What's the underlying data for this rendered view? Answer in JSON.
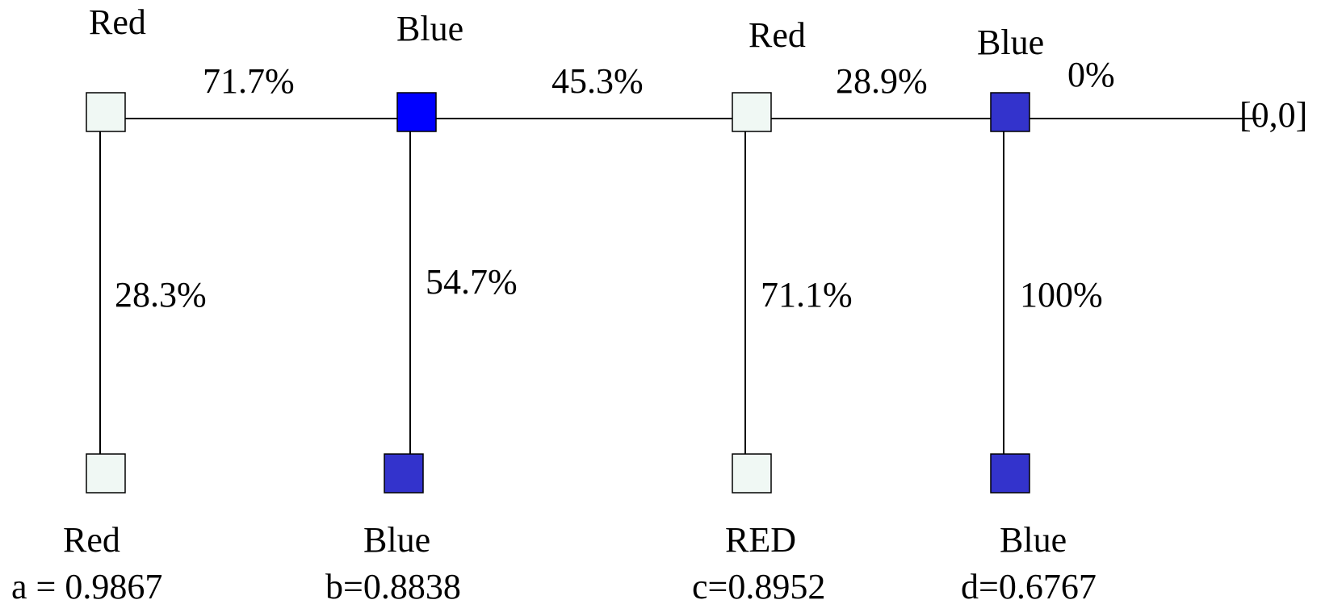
{
  "colors": {
    "red_node": "#f0f8f4",
    "blue_node_bright": "#0000ff",
    "blue_node_dark": "#3333cc"
  },
  "top_nodes": [
    {
      "label": "Red",
      "color": "red"
    },
    {
      "label": "Blue",
      "color": "blue_bright"
    },
    {
      "label": "Red",
      "color": "red"
    },
    {
      "label": "Blue",
      "color": "blue_dark"
    }
  ],
  "horizontal_edges": [
    "71.7%",
    "45.3%",
    "28.9%",
    "0%"
  ],
  "vertical_edges": [
    "28.3%",
    "54.7%",
    "71.1%",
    "100%"
  ],
  "terminal_label": "[0,0]",
  "leaves": [
    {
      "label": "Red",
      "value": "a = 0.9867",
      "color": "red"
    },
    {
      "label": "Blue",
      "value": "b=0.8838",
      "color": "blue_dark"
    },
    {
      "label": "RED",
      "value": "c=0.8952",
      "color": "red"
    },
    {
      "label": "Blue",
      "value": "d=0.6767",
      "color": "blue_dark"
    }
  ]
}
